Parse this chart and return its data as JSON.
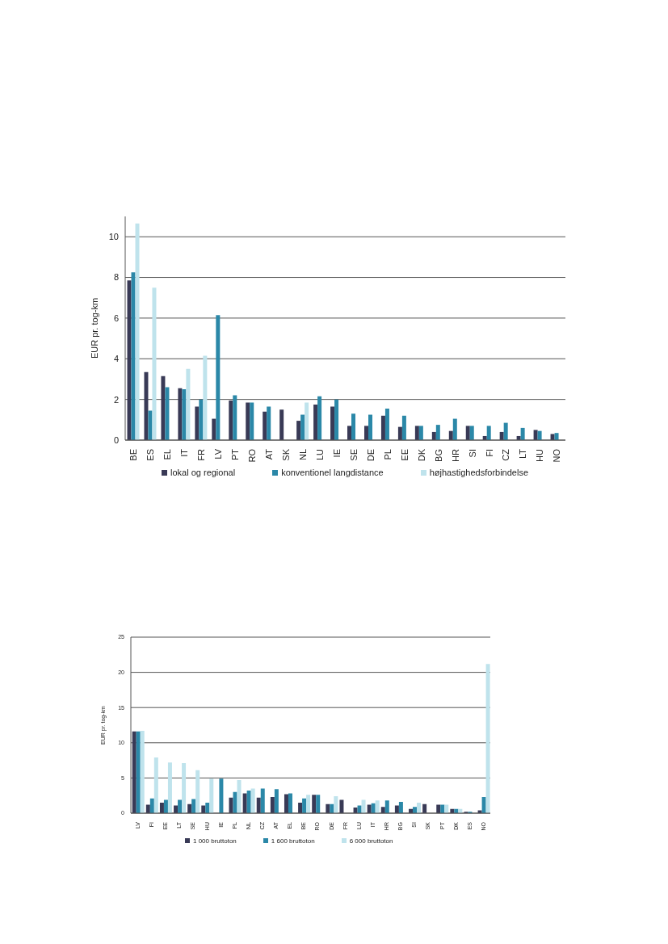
{
  "chart_data": [
    {
      "type": "bar",
      "ylabel": "EUR pr. tog-km",
      "categories": [
        "BE",
        "ES",
        "EL",
        "IT",
        "FR",
        "LV",
        "PT",
        "RO",
        "AT",
        "SK",
        "NL",
        "LU",
        "IE",
        "SE",
        "DE",
        "PL",
        "EE",
        "DK",
        "BG",
        "HR",
        "SI",
        "FI",
        "CZ",
        "LT",
        "HU",
        "NO"
      ],
      "series": [
        {
          "name": "lokal og regional",
          "color": "#393a56",
          "values": [
            7.85,
            3.35,
            3.15,
            2.55,
            1.65,
            1.05,
            1.95,
            1.85,
            1.4,
            1.5,
            0.95,
            1.75,
            1.65,
            0.7,
            0.7,
            1.2,
            0.65,
            0.7,
            0.4,
            0.45,
            0.7,
            0.2,
            0.4,
            0.2,
            0.5,
            0.3
          ]
        },
        {
          "name": "konventionel langdistance",
          "color": "#2b88a8",
          "values": [
            8.25,
            1.45,
            2.6,
            2.5,
            2.0,
            6.15,
            2.2,
            1.85,
            1.65,
            null,
            1.25,
            2.15,
            2.0,
            1.3,
            1.25,
            1.55,
            1.2,
            0.7,
            0.75,
            1.05,
            0.7,
            0.7,
            0.85,
            0.6,
            0.45,
            0.35
          ]
        },
        {
          "name": "højhastighedsforbindelse",
          "color": "#bfe3ec",
          "values": [
            10.65,
            7.5,
            null,
            3.5,
            4.15,
            null,
            null,
            null,
            null,
            null,
            1.85,
            null,
            null,
            null,
            null,
            null,
            null,
            null,
            null,
            null,
            null,
            null,
            null,
            null,
            null,
            null
          ]
        }
      ],
      "ylim": [
        0,
        11
      ],
      "yticks": [
        0,
        2,
        4,
        6,
        8,
        10
      ],
      "grid": "y",
      "legend": "bottom"
    },
    {
      "type": "bar",
      "ylabel": "EUR pr. tog-km",
      "categories": [
        "LV",
        "FI",
        "EE",
        "LT",
        "SE",
        "HU",
        "IE",
        "PL",
        "NL",
        "CZ",
        "AT",
        "EL",
        "BE",
        "RO",
        "DE",
        "FR",
        "LU",
        "IT",
        "HR",
        "BG",
        "SI",
        "SK",
        "PT",
        "DK",
        "ES",
        "NO"
      ],
      "series": [
        {
          "name": "1 000 bruttoton",
          "color": "#393a56",
          "values": [
            11.6,
            1.2,
            1.5,
            1.1,
            1.3,
            1.1,
            null,
            2.2,
            2.8,
            2.2,
            2.3,
            2.7,
            1.5,
            2.6,
            1.3,
            1.9,
            0.8,
            1.2,
            0.9,
            1.1,
            0.6,
            1.3,
            1.2,
            0.6,
            0.2,
            0.4
          ]
        },
        {
          "name": "1 600 bruttoton",
          "color": "#2b88a8",
          "values": [
            11.6,
            2.1,
            1.9,
            1.9,
            2.0,
            1.5,
            4.9,
            3.0,
            3.2,
            3.5,
            3.4,
            2.8,
            2.1,
            2.6,
            1.3,
            null,
            1.1,
            1.4,
            1.8,
            1.6,
            0.9,
            null,
            1.2,
            0.6,
            0.2,
            2.3
          ]
        },
        {
          "name": "6 000 bruttoton",
          "color": "#bfe3ec",
          "values": [
            11.7,
            7.9,
            7.2,
            7.1,
            6.1,
            4.9,
            null,
            4.7,
            3.5,
            null,
            null,
            null,
            2.6,
            null,
            2.4,
            null,
            1.9,
            1.8,
            null,
            null,
            1.5,
            null,
            1.2,
            0.6,
            null,
            21.2
          ]
        }
      ],
      "ylim": [
        0,
        25
      ],
      "yticks": [
        0,
        5,
        10,
        15,
        20,
        25
      ],
      "grid": "y",
      "legend": "bottom"
    }
  ]
}
